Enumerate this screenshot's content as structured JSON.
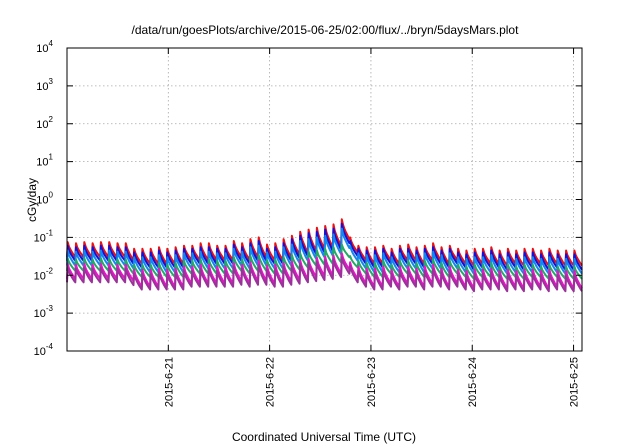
{
  "chart_data": {
    "type": "line",
    "title": "/data/run/goesPlots/archive/2015-06-25/02:00/flux/../bryn/5daysMars.plot",
    "xlabel": "Coordinated Universal Time (UTC)",
    "ylabel": "cGy/day",
    "yscale": "log",
    "ylim": [
      0.0001,
      10000
    ],
    "y_ticks": [
      {
        "base": "10",
        "exp": "-4",
        "value": 0.0001
      },
      {
        "base": "10",
        "exp": "-3",
        "value": 0.001
      },
      {
        "base": "10",
        "exp": "-2",
        "value": 0.01
      },
      {
        "base": "10",
        "exp": "-1",
        "value": 0.1
      },
      {
        "base": "10",
        "exp": "0",
        "value": 1
      },
      {
        "base": "10",
        "exp": "1",
        "value": 10
      },
      {
        "base": "10",
        "exp": "2",
        "value": 100
      },
      {
        "base": "10",
        "exp": "3",
        "value": 1000
      },
      {
        "base": "10",
        "exp": "4",
        "value": 10000
      }
    ],
    "x_range_days": [
      "2015-06-20 00:00",
      "2015-06-25 02:00"
    ],
    "x_ticks": [
      "2015-6-21",
      "2015-6-22",
      "2015-6-23",
      "2015-6-24",
      "2015-6-25"
    ],
    "grid": true,
    "legend": "none",
    "pattern_note": "sawtooth series, about 4 cycles per day",
    "series": [
      {
        "color": "#ee1111",
        "peaks": [
          0.075,
          0.07,
          0.075,
          0.07,
          0.075,
          0.075,
          0.07,
          0.07,
          0.05,
          0.05,
          0.05,
          0.055,
          0.05,
          0.055,
          0.06,
          0.06,
          0.07,
          0.07,
          0.06,
          0.06,
          0.08,
          0.07,
          0.09,
          0.1,
          0.065,
          0.07,
          0.09,
          0.11,
          0.14,
          0.16,
          0.18,
          0.2,
          0.22,
          0.3,
          0.1,
          0.06,
          0.055,
          0.055,
          0.06,
          0.05,
          0.06,
          0.065,
          0.055,
          0.06,
          0.07,
          0.055,
          0.06,
          0.05,
          0.045,
          0.05,
          0.05,
          0.055,
          0.045,
          0.05,
          0.045,
          0.05,
          0.05,
          0.045,
          0.05,
          0.045,
          0.045,
          0.045
        ],
        "troughs": [
          0.03,
          0.03,
          0.03,
          0.03,
          0.03,
          0.03,
          0.03,
          0.025,
          0.02,
          0.02,
          0.02,
          0.02,
          0.02,
          0.02,
          0.025,
          0.025,
          0.025,
          0.025,
          0.025,
          0.025,
          0.03,
          0.025,
          0.03,
          0.03,
          0.025,
          0.025,
          0.03,
          0.035,
          0.04,
          0.045,
          0.05,
          0.055,
          0.06,
          0.09,
          0.04,
          0.025,
          0.02,
          0.02,
          0.025,
          0.02,
          0.025,
          0.025,
          0.02,
          0.025,
          0.025,
          0.02,
          0.025,
          0.02,
          0.018,
          0.02,
          0.02,
          0.02,
          0.018,
          0.02,
          0.018,
          0.02,
          0.02,
          0.018,
          0.02,
          0.018,
          0.018,
          0.018
        ]
      },
      {
        "color": "#1111dd",
        "peaks": [
          0.06,
          0.055,
          0.06,
          0.055,
          0.06,
          0.06,
          0.055,
          0.055,
          0.04,
          0.04,
          0.04,
          0.045,
          0.04,
          0.045,
          0.05,
          0.05,
          0.055,
          0.055,
          0.05,
          0.05,
          0.065,
          0.055,
          0.07,
          0.08,
          0.05,
          0.055,
          0.07,
          0.09,
          0.11,
          0.13,
          0.14,
          0.16,
          0.17,
          0.23,
          0.08,
          0.05,
          0.045,
          0.045,
          0.05,
          0.04,
          0.05,
          0.05,
          0.045,
          0.05,
          0.055,
          0.045,
          0.05,
          0.04,
          0.036,
          0.04,
          0.04,
          0.045,
          0.036,
          0.04,
          0.036,
          0.04,
          0.04,
          0.036,
          0.04,
          0.036,
          0.036,
          0.036
        ],
        "troughs": [
          0.024,
          0.024,
          0.024,
          0.024,
          0.024,
          0.024,
          0.024,
          0.02,
          0.016,
          0.016,
          0.016,
          0.016,
          0.016,
          0.016,
          0.02,
          0.02,
          0.02,
          0.02,
          0.02,
          0.02,
          0.024,
          0.02,
          0.024,
          0.024,
          0.02,
          0.02,
          0.024,
          0.028,
          0.032,
          0.036,
          0.04,
          0.044,
          0.048,
          0.07,
          0.032,
          0.02,
          0.016,
          0.016,
          0.02,
          0.016,
          0.02,
          0.02,
          0.016,
          0.02,
          0.02,
          0.016,
          0.02,
          0.016,
          0.014,
          0.016,
          0.016,
          0.016,
          0.014,
          0.016,
          0.014,
          0.016,
          0.016,
          0.014,
          0.016,
          0.014,
          0.014,
          0.014
        ]
      },
      {
        "color": "#1188ee",
        "peaks": [
          0.045,
          0.042,
          0.045,
          0.042,
          0.045,
          0.045,
          0.042,
          0.042,
          0.03,
          0.03,
          0.03,
          0.034,
          0.03,
          0.034,
          0.038,
          0.038,
          0.042,
          0.042,
          0.038,
          0.038,
          0.05,
          0.042,
          0.055,
          0.06,
          0.04,
          0.042,
          0.055,
          0.065,
          0.08,
          0.09,
          0.1,
          0.11,
          0.12,
          0.17,
          0.06,
          0.038,
          0.034,
          0.034,
          0.038,
          0.03,
          0.038,
          0.038,
          0.034,
          0.038,
          0.042,
          0.034,
          0.038,
          0.03,
          0.027,
          0.03,
          0.03,
          0.034,
          0.027,
          0.03,
          0.027,
          0.03,
          0.03,
          0.027,
          0.03,
          0.027,
          0.027,
          0.027
        ],
        "troughs": [
          0.018,
          0.018,
          0.018,
          0.018,
          0.018,
          0.018,
          0.018,
          0.015,
          0.012,
          0.012,
          0.012,
          0.012,
          0.012,
          0.012,
          0.015,
          0.015,
          0.015,
          0.015,
          0.015,
          0.015,
          0.018,
          0.015,
          0.018,
          0.018,
          0.015,
          0.015,
          0.018,
          0.021,
          0.024,
          0.027,
          0.03,
          0.033,
          0.036,
          0.052,
          0.024,
          0.015,
          0.012,
          0.012,
          0.015,
          0.012,
          0.015,
          0.015,
          0.012,
          0.015,
          0.015,
          0.012,
          0.015,
          0.012,
          0.011,
          0.012,
          0.012,
          0.012,
          0.011,
          0.012,
          0.011,
          0.012,
          0.012,
          0.011,
          0.012,
          0.011,
          0.011,
          0.011
        ]
      },
      {
        "color": "#22aa66",
        "peaks": [
          0.028,
          0.026,
          0.028,
          0.026,
          0.028,
          0.028,
          0.026,
          0.026,
          0.019,
          0.019,
          0.019,
          0.021,
          0.019,
          0.021,
          0.024,
          0.024,
          0.026,
          0.026,
          0.024,
          0.024,
          0.03,
          0.026,
          0.032,
          0.034,
          0.025,
          0.026,
          0.03,
          0.034,
          0.038,
          0.042,
          0.046,
          0.05,
          0.055,
          0.065,
          0.032,
          0.024,
          0.021,
          0.021,
          0.024,
          0.019,
          0.024,
          0.024,
          0.021,
          0.024,
          0.026,
          0.021,
          0.024,
          0.019,
          0.017,
          0.019,
          0.019,
          0.021,
          0.017,
          0.019,
          0.017,
          0.019,
          0.019,
          0.017,
          0.019,
          0.017,
          0.017,
          0.017
        ],
        "troughs": [
          0.013,
          0.013,
          0.013,
          0.013,
          0.013,
          0.013,
          0.013,
          0.011,
          0.009,
          0.009,
          0.009,
          0.009,
          0.009,
          0.009,
          0.011,
          0.011,
          0.011,
          0.011,
          0.011,
          0.011,
          0.013,
          0.011,
          0.013,
          0.013,
          0.011,
          0.011,
          0.013,
          0.014,
          0.016,
          0.018,
          0.019,
          0.02,
          0.022,
          0.03,
          0.016,
          0.011,
          0.009,
          0.009,
          0.011,
          0.009,
          0.011,
          0.011,
          0.009,
          0.011,
          0.011,
          0.009,
          0.011,
          0.009,
          0.008,
          0.009,
          0.009,
          0.009,
          0.008,
          0.009,
          0.008,
          0.009,
          0.009,
          0.008,
          0.009,
          0.008,
          0.008,
          0.008
        ]
      },
      {
        "color": "#ee11cc",
        "peaks": [
          0.02,
          0.019,
          0.02,
          0.019,
          0.02,
          0.02,
          0.019,
          0.019,
          0.014,
          0.014,
          0.014,
          0.015,
          0.014,
          0.015,
          0.017,
          0.017,
          0.019,
          0.019,
          0.017,
          0.017,
          0.021,
          0.019,
          0.022,
          0.024,
          0.018,
          0.019,
          0.021,
          0.023,
          0.025,
          0.027,
          0.029,
          0.031,
          0.033,
          0.038,
          0.022,
          0.017,
          0.015,
          0.015,
          0.017,
          0.014,
          0.017,
          0.017,
          0.015,
          0.017,
          0.019,
          0.015,
          0.017,
          0.014,
          0.013,
          0.014,
          0.014,
          0.015,
          0.013,
          0.014,
          0.013,
          0.014,
          0.014,
          0.013,
          0.014,
          0.013,
          0.013,
          0.013
        ],
        "troughs": [
          0.008,
          0.008,
          0.008,
          0.008,
          0.008,
          0.008,
          0.008,
          0.007,
          0.005,
          0.005,
          0.005,
          0.005,
          0.005,
          0.005,
          0.006,
          0.006,
          0.006,
          0.006,
          0.006,
          0.006,
          0.007,
          0.006,
          0.007,
          0.007,
          0.006,
          0.006,
          0.007,
          0.0075,
          0.008,
          0.009,
          0.0095,
          0.01,
          0.011,
          0.014,
          0.008,
          0.006,
          0.005,
          0.005,
          0.006,
          0.005,
          0.006,
          0.006,
          0.005,
          0.006,
          0.006,
          0.005,
          0.006,
          0.005,
          0.0045,
          0.005,
          0.005,
          0.005,
          0.0045,
          0.005,
          0.0045,
          0.005,
          0.005,
          0.0045,
          0.005,
          0.0045,
          0.0045,
          0.0045
        ]
      },
      {
        "color": "#993399",
        "peaks": [
          0.016,
          0.015,
          0.016,
          0.015,
          0.016,
          0.016,
          0.015,
          0.015,
          0.011,
          0.011,
          0.011,
          0.012,
          0.011,
          0.012,
          0.013,
          0.013,
          0.015,
          0.015,
          0.013,
          0.013,
          0.017,
          0.015,
          0.018,
          0.019,
          0.014,
          0.015,
          0.017,
          0.018,
          0.02,
          0.022,
          0.023,
          0.025,
          0.026,
          0.03,
          0.018,
          0.013,
          0.012,
          0.012,
          0.013,
          0.011,
          0.013,
          0.013,
          0.012,
          0.013,
          0.015,
          0.012,
          0.013,
          0.011,
          0.01,
          0.011,
          0.011,
          0.012,
          0.01,
          0.011,
          0.01,
          0.011,
          0.011,
          0.01,
          0.011,
          0.01,
          0.01,
          0.01
        ],
        "troughs": [
          0.0065,
          0.0065,
          0.0065,
          0.0065,
          0.0065,
          0.0065,
          0.0065,
          0.0055,
          0.0042,
          0.0042,
          0.0042,
          0.0042,
          0.0042,
          0.0042,
          0.005,
          0.005,
          0.005,
          0.005,
          0.005,
          0.005,
          0.0056,
          0.005,
          0.0056,
          0.0056,
          0.005,
          0.005,
          0.0056,
          0.006,
          0.0065,
          0.007,
          0.0075,
          0.008,
          0.009,
          0.011,
          0.0065,
          0.005,
          0.0042,
          0.0042,
          0.005,
          0.0042,
          0.005,
          0.005,
          0.0042,
          0.005,
          0.005,
          0.0042,
          0.005,
          0.0042,
          0.0038,
          0.0042,
          0.0042,
          0.0042,
          0.0038,
          0.0042,
          0.0038,
          0.0042,
          0.0042,
          0.0038,
          0.0042,
          0.0038,
          0.0038,
          0.0038
        ]
      }
    ]
  }
}
